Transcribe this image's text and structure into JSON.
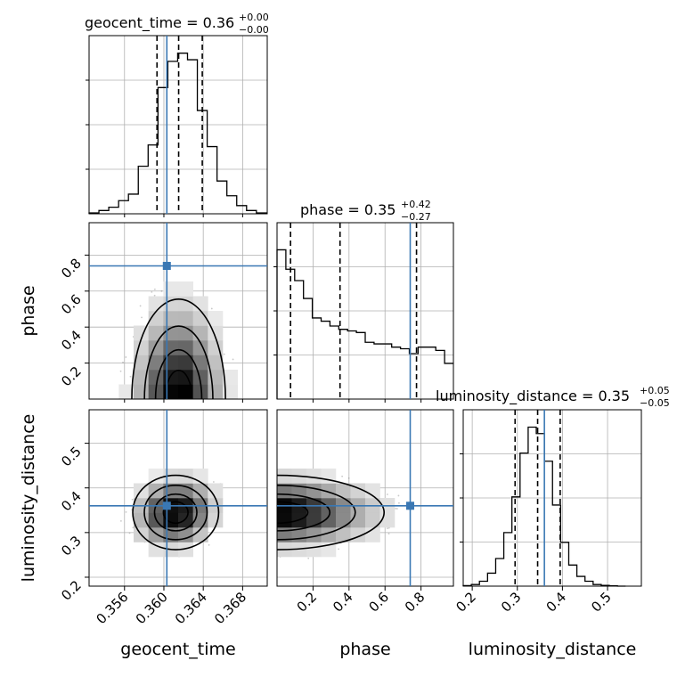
{
  "colors": {
    "truth": "#3a78b4",
    "hist": "#000000",
    "grid": "#b0b0b0",
    "density": "#000000"
  },
  "titles": {
    "geocent": {
      "name": "geocent_time = 0.36",
      "up": "+0.00",
      "down": "−0.00"
    },
    "phase": {
      "name": "phase = 0.35",
      "up": "+0.42",
      "down": "−0.27"
    },
    "lumdist": {
      "name": "luminosity_distance = 0.35",
      "up": "+0.05",
      "down": "−0.05"
    }
  },
  "chart_data": {
    "type": "corner",
    "grid": true,
    "parameters": [
      "geocent_time",
      "phase",
      "luminosity_distance"
    ],
    "axes": {
      "geocent_time": {
        "label": "geocent_time",
        "range": [
          0.3524,
          0.3705
        ],
        "ticks": [
          0.356,
          0.36,
          0.364,
          0.368
        ],
        "tick_labels": [
          "0.356",
          "0.360",
          "0.364",
          "0.368"
        ]
      },
      "phase": {
        "label": "phase",
        "range": [
          0.0,
          0.98
        ],
        "ticks": [
          0.2,
          0.4,
          0.6,
          0.8
        ],
        "tick_labels": [
          "0.2",
          "0.4",
          "0.6",
          "0.8"
        ]
      },
      "luminosity_distance": {
        "label": "luminosity_distance",
        "range": [
          0.18,
          0.575
        ],
        "ticks": [
          0.2,
          0.3,
          0.4,
          0.5
        ],
        "tick_labels": [
          "0.2",
          "0.3",
          "0.4",
          "0.5"
        ]
      }
    },
    "truths": {
      "geocent_time": 0.3603,
      "phase": 0.74,
      "luminosity_distance": 0.36
    },
    "quantiles": {
      "geocent_time": [
        0.3593,
        0.3615,
        0.3639
      ],
      "phase": [
        0.075,
        0.35,
        0.775
      ],
      "luminosity_distance": [
        0.295,
        0.345,
        0.395
      ]
    },
    "histograms": {
      "geocent_time": {
        "edges": [
          0.3524,
          0.3534,
          0.3544,
          0.3554,
          0.3564,
          0.3574,
          0.3584,
          0.3594,
          0.3604,
          0.3614,
          0.3624,
          0.3634,
          0.3644,
          0.3654,
          0.3664,
          0.3674,
          0.3684,
          0.3694,
          0.3705
        ],
        "counts": [
          0.005,
          0.02,
          0.04,
          0.08,
          0.12,
          0.29,
          0.42,
          0.77,
          0.93,
          0.98,
          0.94,
          0.63,
          0.41,
          0.2,
          0.11,
          0.05,
          0.02,
          0.005
        ]
      },
      "phase": {
        "edges": [
          0.0,
          0.049,
          0.098,
          0.147,
          0.196,
          0.245,
          0.294,
          0.343,
          0.392,
          0.441,
          0.49,
          0.539,
          0.588,
          0.637,
          0.686,
          0.735,
          0.784,
          0.833,
          0.882,
          0.931,
          0.98
        ],
        "counts": [
          0.92,
          0.8,
          0.73,
          0.62,
          0.5,
          0.48,
          0.45,
          0.43,
          0.42,
          0.41,
          0.35,
          0.34,
          0.34,
          0.32,
          0.31,
          0.28,
          0.32,
          0.32,
          0.3,
          0.22
        ]
      },
      "luminosity_distance": {
        "edges": [
          0.18,
          0.198,
          0.216,
          0.234,
          0.252,
          0.27,
          0.288,
          0.306,
          0.324,
          0.342,
          0.36,
          0.378,
          0.396,
          0.414,
          0.432,
          0.45,
          0.468,
          0.486,
          0.504,
          0.522,
          0.54
        ],
        "counts": [
          0.003,
          0.01,
          0.03,
          0.08,
          0.17,
          0.33,
          0.55,
          0.82,
          0.98,
          0.94,
          0.77,
          0.5,
          0.27,
          0.13,
          0.06,
          0.03,
          0.01,
          0.005,
          0.002,
          0.0
        ]
      }
    },
    "density_2d": {
      "phase_vs_geocent_time": {
        "mean": [
          0.3615,
          0.0
        ],
        "sd": [
          0.0024,
          0.28
        ],
        "corr": 0.0
      },
      "luminosity_distance_vs_geocent_time": {
        "mean": [
          0.3612,
          0.345
        ],
        "sd": [
          0.0022,
          0.042
        ],
        "corr": 0.1
      },
      "luminosity_distance_vs_phase": {
        "mean": [
          0.0,
          0.345
        ],
        "sd": [
          0.3,
          0.042
        ],
        "corr": 0.0
      }
    }
  }
}
